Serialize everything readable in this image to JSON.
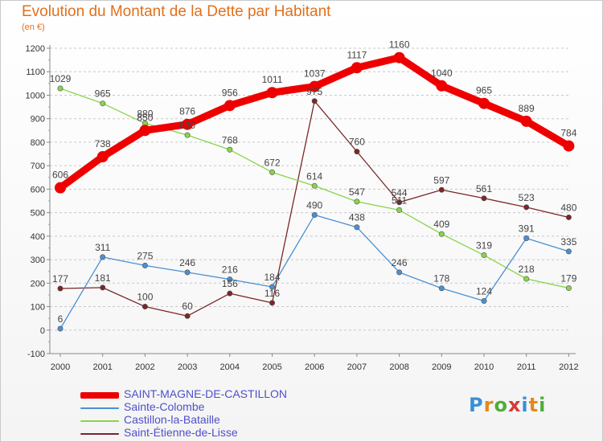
{
  "header": {
    "title": "Evolution du Montant de la Dette par Habitant",
    "unit": "(en €)"
  },
  "logo": {
    "text": "Proxiti",
    "letter_colors": [
      "#3a8fd6",
      "#e08a1c",
      "#4fae3a",
      "#d63a3a",
      "#3a8fd6",
      "#e08a1c",
      "#4fae3a"
    ]
  },
  "chart_data": {
    "type": "line",
    "title": "Evolution du Montant de la Dette par Habitant",
    "ylabel": "(en €)",
    "xlabel": "",
    "x": [
      "2000",
      "2001",
      "2002",
      "2003",
      "2004",
      "2005",
      "2006",
      "2007",
      "2008",
      "2009",
      "2010",
      "2011",
      "2012"
    ],
    "ylim": [
      -100,
      1200
    ],
    "yticks": [
      -100,
      0,
      100,
      200,
      300,
      400,
      500,
      600,
      700,
      800,
      900,
      1000,
      1100,
      1200
    ],
    "grid": "horizontal dashed",
    "legend_position": "bottom-left",
    "series": [
      {
        "name": "SAINT-MAGNE-DE-CASTILLON",
        "color": "#ee0000",
        "values": [
          606,
          738,
          850,
          876,
          956,
          1011,
          1037,
          1117,
          1160,
          1040,
          965,
          889,
          784
        ],
        "labels": [
          "606",
          "738",
          "850",
          "876",
          "956",
          "1011",
          "1037",
          "1117",
          "1160",
          "1040",
          "965",
          "889",
          "784"
        ]
      },
      {
        "name": "Sainte-Colombe",
        "color": "#4b8fd2",
        "values": [
          6,
          311,
          275,
          246,
          216,
          184,
          490,
          438,
          246,
          178,
          124,
          391,
          335
        ],
        "labels": [
          "6",
          "311",
          "275",
          "246",
          "216",
          "184",
          "490",
          "438",
          "246",
          "178",
          "124",
          "391",
          "335"
        ]
      },
      {
        "name": "Castillon-la-Bataille",
        "color": "#88d44a",
        "values": [
          1029,
          965,
          880,
          830,
          768,
          672,
          614,
          547,
          511,
          409,
          319,
          218,
          179
        ],
        "labels": [
          "1029",
          "965",
          "880",
          "830",
          "768",
          "672",
          "614",
          "547",
          "511",
          "409",
          "319",
          "218",
          "179"
        ]
      },
      {
        "name": "Saint-Étienne-de-Lisse",
        "color": "#7a2626",
        "values": [
          177,
          181,
          100,
          60,
          156,
          116,
          975,
          760,
          544,
          597,
          561,
          523,
          480
        ],
        "labels": [
          "177",
          "181",
          "100",
          "60",
          "156",
          "116",
          "975",
          "760",
          "544",
          "597",
          "561",
          "523",
          "480"
        ]
      }
    ]
  }
}
